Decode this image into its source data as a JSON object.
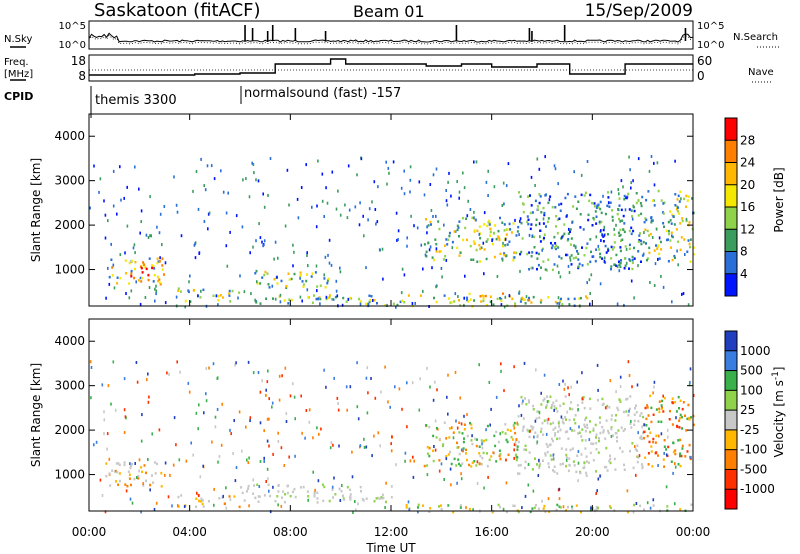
{
  "header": {
    "station": "Saskatoon (fitACF)",
    "beam": "Beam 01",
    "date": "15/Sep/2009"
  },
  "panels": {
    "noise": {
      "left_label": "N.Sky",
      "left_ticks": [
        "10^5",
        "10^0"
      ],
      "right_ticks": [
        "10^5",
        "10^0"
      ],
      "right_label": "N.Search"
    },
    "freq": {
      "left_label_1": "Freq.",
      "left_label_2": "[MHz]",
      "left_ticks": [
        "18",
        "8"
      ],
      "right_ticks": [
        "60",
        "0"
      ],
      "right_label": "Nave"
    },
    "cpid": {
      "label": "CPID",
      "segments": [
        "themis 3300",
        "normalsound (fast) -157"
      ]
    }
  },
  "chart_data": [
    {
      "type": "heatmap",
      "name": "power",
      "ylabel": "Slant Range [km]",
      "ylim": [
        180,
        4500
      ],
      "yticks": [
        1000,
        2000,
        3000,
        4000
      ],
      "colorbar": {
        "label": "Power [dB]",
        "ticks": [
          "28",
          "24",
          "20",
          "16",
          "12",
          "8",
          "4"
        ],
        "colors": [
          "#ff0000",
          "#ff7f00",
          "#ffb700",
          "#f5e800",
          "#8ed34a",
          "#3a9d5d",
          "#2a6fd8",
          "#0015ff"
        ]
      },
      "regions": [
        {
          "t": [
            0.6,
            3.0
          ],
          "r": [
            700,
            1300
          ],
          "level": "high"
        },
        {
          "t": [
            1.6,
            2.5
          ],
          "r": [
            850,
            1150
          ],
          "level": "peak"
        },
        {
          "t": [
            3.5,
            6.0
          ],
          "r": [
            300,
            600
          ],
          "level": "mid"
        },
        {
          "t": [
            6.0,
            11.0
          ],
          "r": [
            250,
            450
          ],
          "level": "mid"
        },
        {
          "t": [
            6.5,
            9.5
          ],
          "r": [
            600,
            1000
          ],
          "level": "mid"
        },
        {
          "t": [
            11.0,
            20.0
          ],
          "r": [
            200,
            450
          ],
          "level": "mid"
        },
        {
          "t": [
            15.0,
            17.5
          ],
          "r": [
            300,
            500
          ],
          "level": "high"
        },
        {
          "t": [
            13.3,
            17.0
          ],
          "r": [
            1200,
            2200
          ],
          "level": "mid"
        },
        {
          "t": [
            17.0,
            22.0
          ],
          "r": [
            1000,
            2800
          ],
          "level": "low"
        },
        {
          "t": [
            22.0,
            24.0
          ],
          "r": [
            1200,
            2800
          ],
          "level": "mid"
        }
      ]
    },
    {
      "type": "heatmap",
      "name": "velocity",
      "xlabel": "Time UT",
      "ylabel": "Slant Range [km]",
      "xlim": [
        0,
        24
      ],
      "xticks": [
        "00:00",
        "04:00",
        "08:00",
        "12:00",
        "16:00",
        "20:00",
        "00:00"
      ],
      "ylim": [
        180,
        4500
      ],
      "yticks": [
        1000,
        2000,
        3000,
        4000
      ],
      "colorbar": {
        "label": "Velocity [m s^-1]",
        "ticks": [
          "1000",
          "500",
          "100",
          "25",
          "-25",
          "-100",
          "-500",
          "-1000"
        ],
        "colors": [
          "#1f3fbf",
          "#3a7de0",
          "#3ab04a",
          "#8ed34a",
          "#c8c8c8",
          "#ffb700",
          "#ff7f00",
          "#ff3000",
          "#ff0000"
        ]
      },
      "regions": [
        {
          "t": [
            0.6,
            3.0
          ],
          "r": [
            700,
            1300
          ],
          "level": "slow-neg"
        },
        {
          "t": [
            3.5,
            6.0
          ],
          "r": [
            300,
            600
          ],
          "level": "slow-neg"
        },
        {
          "t": [
            6.0,
            12.0
          ],
          "r": [
            400,
            800
          ],
          "level": "ground"
        },
        {
          "t": [
            12.0,
            24.0
          ],
          "r": [
            180,
            350
          ],
          "level": "slow-pos"
        },
        {
          "t": [
            13.3,
            17.0
          ],
          "r": [
            1200,
            2200
          ],
          "level": "mixed"
        },
        {
          "t": [
            17.0,
            22.0
          ],
          "r": [
            1000,
            2800
          ],
          "level": "ground"
        },
        {
          "t": [
            22.0,
            24.0
          ],
          "r": [
            1200,
            2800
          ],
          "level": "neg"
        }
      ]
    }
  ]
}
